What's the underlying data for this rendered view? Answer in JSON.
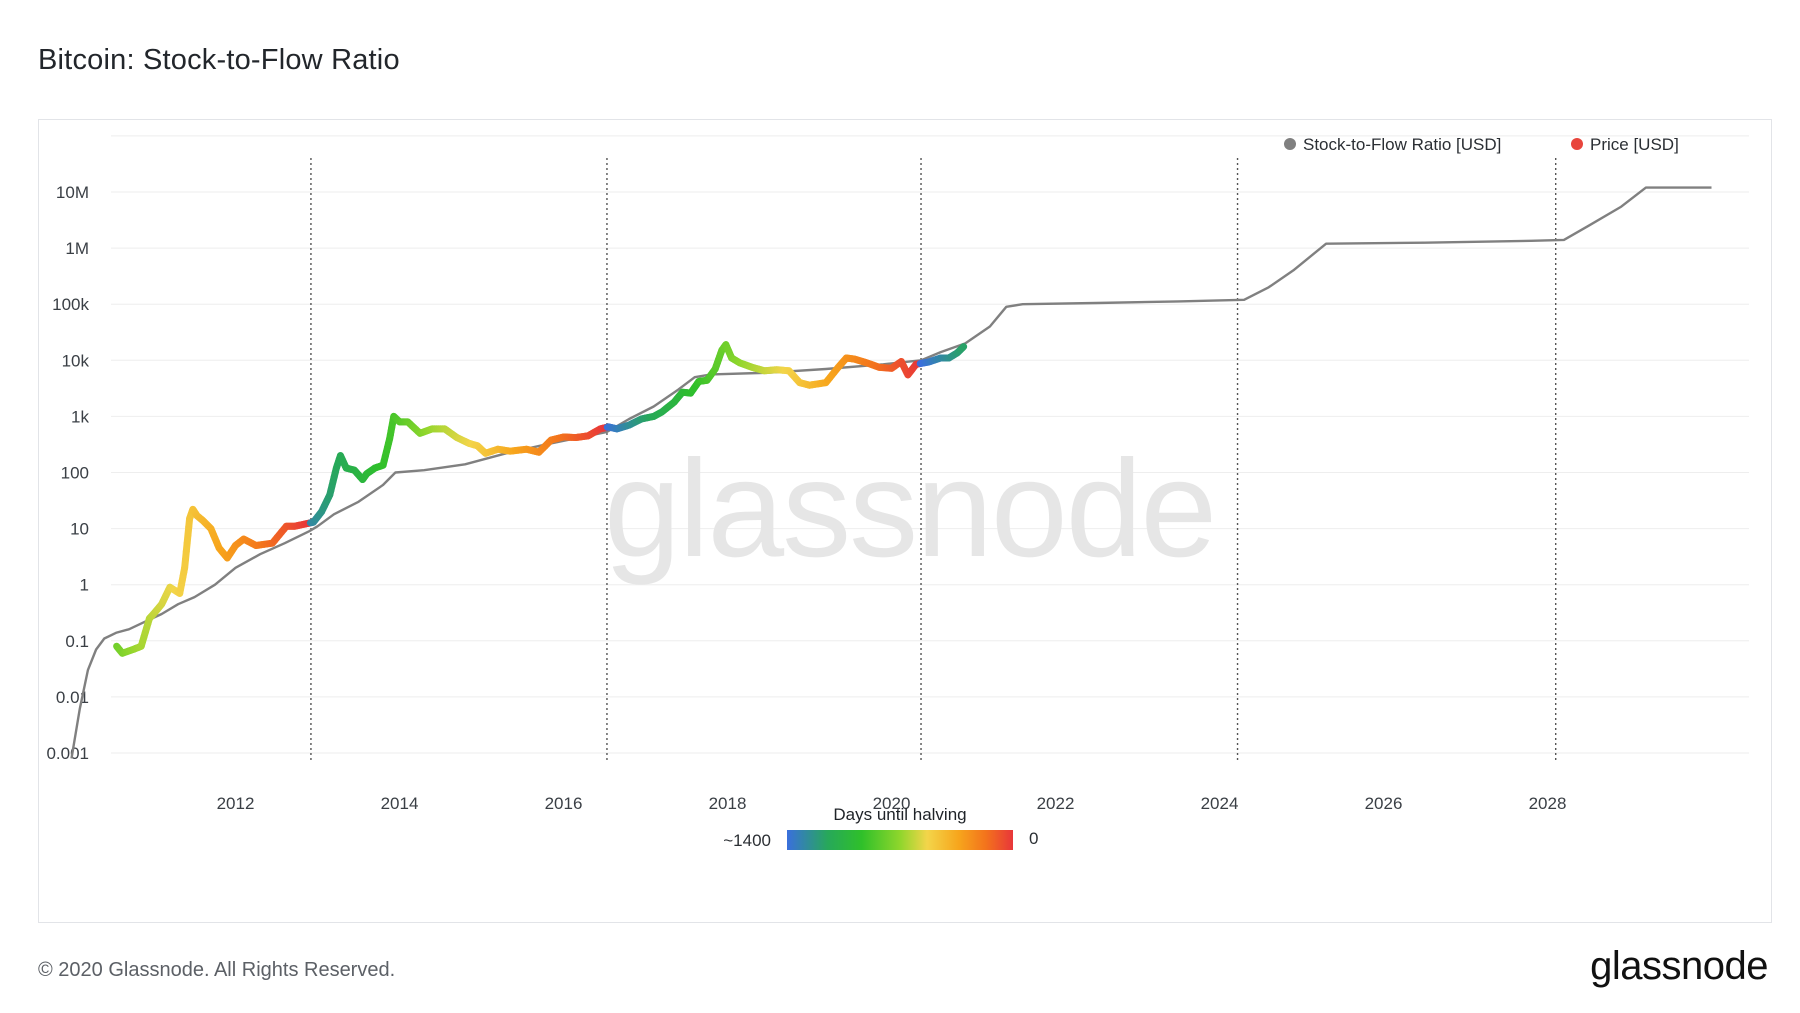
{
  "page": {
    "title": "Bitcoin: Stock-to-Flow Ratio",
    "copyright": "© 2020 Glassnode. All Rights Reserved.",
    "logo": "glassnode",
    "watermark": "glassnode"
  },
  "colors": {
    "sf_line": "#808080",
    "price_legend_dot": "#e8453c",
    "halving_line": "#555555",
    "grid": "#eeeeee",
    "gradient": [
      "#3a6fdd",
      "#27a85a",
      "#2fc02a",
      "#8fd62c",
      "#f3d54a",
      "#f7a51c",
      "#f3731c",
      "#e8363a"
    ]
  },
  "chart_data": {
    "type": "line",
    "yscale": "log",
    "ylim": [
      0.001,
      100000000
    ],
    "xlim": [
      2010.0,
      2030.0
    ],
    "grid": "horizontal",
    "y_ticks": [
      {
        "value": 0.001,
        "label": "0.001"
      },
      {
        "value": 0.01,
        "label": "0.01"
      },
      {
        "value": 0.1,
        "label": "0.1"
      },
      {
        "value": 1,
        "label": "1"
      },
      {
        "value": 10,
        "label": "10"
      },
      {
        "value": 100,
        "label": "100"
      },
      {
        "value": 1000,
        "label": "1k"
      },
      {
        "value": 10000,
        "label": "10k"
      },
      {
        "value": 100000,
        "label": "100k"
      },
      {
        "value": 1000000,
        "label": "1M"
      },
      {
        "value": 10000000,
        "label": "10M"
      }
    ],
    "x_ticks": [
      {
        "value": 2012,
        "label": "2012"
      },
      {
        "value": 2014,
        "label": "2014"
      },
      {
        "value": 2016,
        "label": "2016"
      },
      {
        "value": 2018,
        "label": "2018"
      },
      {
        "value": 2020,
        "label": "2020"
      },
      {
        "value": 2022,
        "label": "2022"
      },
      {
        "value": 2024,
        "label": "2024"
      },
      {
        "value": 2026,
        "label": "2026"
      },
      {
        "value": 2028,
        "label": "2028"
      }
    ],
    "halvings": [
      2012.92,
      2016.53,
      2020.36,
      2024.22,
      2028.1
    ],
    "legend": {
      "placement": "top-right",
      "items": [
        {
          "label": "Stock-to-Flow Ratio [USD]",
          "color": "#808080"
        },
        {
          "label": "Price [USD]",
          "color": "#e8453c"
        }
      ]
    },
    "colorbar": {
      "title": "Days until halving",
      "min_label": "~1400",
      "max_label": "0"
    },
    "series": [
      {
        "name": "Stock-to-Flow Ratio [USD]",
        "points": [
          [
            2010.0,
            0.0008
          ],
          [
            2010.1,
            0.006
          ],
          [
            2010.2,
            0.03
          ],
          [
            2010.3,
            0.07
          ],
          [
            2010.4,
            0.11
          ],
          [
            2010.55,
            0.14
          ],
          [
            2010.7,
            0.16
          ],
          [
            2010.9,
            0.22
          ],
          [
            2011.1,
            0.3
          ],
          [
            2011.3,
            0.45
          ],
          [
            2011.5,
            0.6
          ],
          [
            2011.75,
            1.0
          ],
          [
            2012.0,
            2.0
          ],
          [
            2012.3,
            3.5
          ],
          [
            2012.6,
            5.5
          ],
          [
            2012.9,
            9.0
          ],
          [
            2013.0,
            11
          ],
          [
            2013.2,
            18
          ],
          [
            2013.5,
            30
          ],
          [
            2013.8,
            60
          ],
          [
            2013.95,
            100
          ],
          [
            2014.3,
            110
          ],
          [
            2014.8,
            140
          ],
          [
            2015.3,
            220
          ],
          [
            2015.8,
            320
          ],
          [
            2016.2,
            420
          ],
          [
            2016.53,
            530
          ],
          [
            2016.8,
            900
          ],
          [
            2017.1,
            1500
          ],
          [
            2017.4,
            3000
          ],
          [
            2017.6,
            5000
          ],
          [
            2017.8,
            5600
          ],
          [
            2018.5,
            6000
          ],
          [
            2019.2,
            7000
          ],
          [
            2019.9,
            8500
          ],
          [
            2020.36,
            10000
          ],
          [
            2020.6,
            14000
          ],
          [
            2020.9,
            20000
          ],
          [
            2021.2,
            40000
          ],
          [
            2021.4,
            90000
          ],
          [
            2021.6,
            100000
          ],
          [
            2022.5,
            105000
          ],
          [
            2023.5,
            112000
          ],
          [
            2024.3,
            120000
          ],
          [
            2024.6,
            200000
          ],
          [
            2024.9,
            400000
          ],
          [
            2025.3,
            1200000
          ],
          [
            2026.5,
            1250000
          ],
          [
            2027.8,
            1350000
          ],
          [
            2028.2,
            1400000
          ],
          [
            2028.5,
            2500000
          ],
          [
            2028.9,
            5500000
          ],
          [
            2029.2,
            12000000
          ],
          [
            2029.8,
            12000000
          ],
          [
            2030.0,
            12000000
          ]
        ]
      },
      {
        "name": "Price [USD]",
        "points": [
          [
            2010.55,
            0.08
          ],
          [
            2010.62,
            0.06
          ],
          [
            2010.75,
            0.07
          ],
          [
            2010.85,
            0.08
          ],
          [
            2010.95,
            0.25
          ],
          [
            2011.0,
            0.3
          ],
          [
            2011.1,
            0.45
          ],
          [
            2011.2,
            0.9
          ],
          [
            2011.32,
            0.7
          ],
          [
            2011.38,
            2
          ],
          [
            2011.44,
            15
          ],
          [
            2011.48,
            22
          ],
          [
            2011.53,
            17
          ],
          [
            2011.6,
            14
          ],
          [
            2011.7,
            10
          ],
          [
            2011.8,
            4.5
          ],
          [
            2011.9,
            3
          ],
          [
            2012.0,
            5
          ],
          [
            2012.1,
            6.5
          ],
          [
            2012.25,
            5
          ],
          [
            2012.45,
            5.5
          ],
          [
            2012.62,
            11
          ],
          [
            2012.72,
            11
          ],
          [
            2012.84,
            12
          ],
          [
            2012.95,
            13
          ],
          [
            2013.05,
            20
          ],
          [
            2013.15,
            40
          ],
          [
            2013.23,
            120
          ],
          [
            2013.28,
            200
          ],
          [
            2013.35,
            120
          ],
          [
            2013.45,
            110
          ],
          [
            2013.55,
            75
          ],
          [
            2013.6,
            95
          ],
          [
            2013.7,
            120
          ],
          [
            2013.8,
            135
          ],
          [
            2013.88,
            400
          ],
          [
            2013.93,
            1000
          ],
          [
            2014.0,
            800
          ],
          [
            2014.1,
            800
          ],
          [
            2014.25,
            500
          ],
          [
            2014.4,
            600
          ],
          [
            2014.55,
            600
          ],
          [
            2014.7,
            420
          ],
          [
            2014.85,
            330
          ],
          [
            2014.95,
            300
          ],
          [
            2015.05,
            220
          ],
          [
            2015.2,
            260
          ],
          [
            2015.35,
            240
          ],
          [
            2015.55,
            260
          ],
          [
            2015.7,
            230
          ],
          [
            2015.85,
            380
          ],
          [
            2016.0,
            430
          ],
          [
            2016.15,
            420
          ],
          [
            2016.3,
            450
          ],
          [
            2016.45,
            600
          ],
          [
            2016.55,
            650
          ],
          [
            2016.65,
            600
          ],
          [
            2016.8,
            700
          ],
          [
            2016.95,
            900
          ],
          [
            2017.1,
            1000
          ],
          [
            2017.2,
            1200
          ],
          [
            2017.35,
            1800
          ],
          [
            2017.45,
            2700
          ],
          [
            2017.55,
            2600
          ],
          [
            2017.65,
            4200
          ],
          [
            2017.75,
            4400
          ],
          [
            2017.85,
            7000
          ],
          [
            2017.93,
            15000
          ],
          [
            2017.98,
            19000
          ],
          [
            2018.05,
            11000
          ],
          [
            2018.15,
            9000
          ],
          [
            2018.3,
            7500
          ],
          [
            2018.45,
            6500
          ],
          [
            2018.6,
            6800
          ],
          [
            2018.75,
            6500
          ],
          [
            2018.88,
            4000
          ],
          [
            2019.0,
            3600
          ],
          [
            2019.2,
            4000
          ],
          [
            2019.35,
            7500
          ],
          [
            2019.45,
            11000
          ],
          [
            2019.55,
            10500
          ],
          [
            2019.7,
            9000
          ],
          [
            2019.85,
            7500
          ],
          [
            2020.0,
            7200
          ],
          [
            2020.12,
            9500
          ],
          [
            2020.2,
            5500
          ],
          [
            2020.3,
            8500
          ],
          [
            2020.45,
            9300
          ],
          [
            2020.6,
            11000
          ],
          [
            2020.7,
            11000
          ],
          [
            2020.8,
            13500
          ],
          [
            2020.88,
            17500
          ]
        ]
      }
    ]
  }
}
